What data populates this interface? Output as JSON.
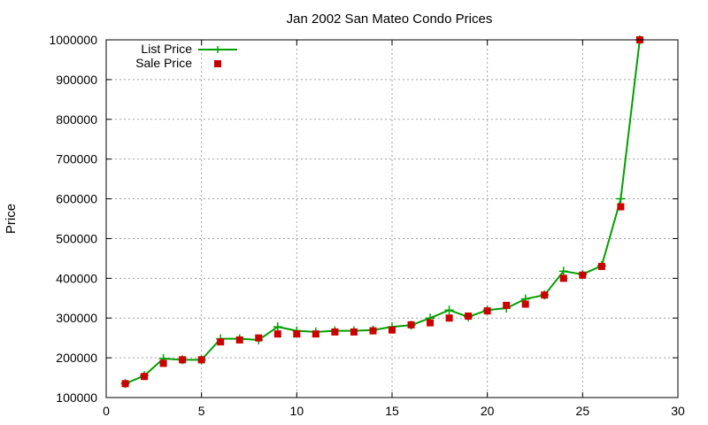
{
  "chart_data": {
    "type": "line",
    "title": "Jan 2002 San Mateo Condo Prices",
    "xlabel": "",
    "ylabel": "Price",
    "xlim": [
      0,
      30
    ],
    "ylim": [
      100000,
      1000000
    ],
    "x_ticks": [
      0,
      5,
      10,
      15,
      20,
      25,
      30
    ],
    "y_ticks": [
      100000,
      200000,
      300000,
      400000,
      500000,
      600000,
      700000,
      800000,
      900000,
      1000000
    ],
    "x_tick_labels": [
      "0",
      "5",
      "10",
      "15",
      "20",
      "25",
      "30"
    ],
    "y_tick_labels": [
      "100000",
      "200000",
      "300000",
      "400000",
      "500000",
      "600000",
      "700000",
      "800000",
      "900000",
      "1000000"
    ],
    "grid": true,
    "legend_position": "top-left",
    "series": [
      {
        "name": "List Price",
        "style": "line-plus",
        "color": "#00a000",
        "points": [
          [
            1,
            135000
          ],
          [
            2,
            155000
          ],
          [
            3,
            198000
          ],
          [
            4,
            195000
          ],
          [
            5,
            195000
          ],
          [
            6,
            248000
          ],
          [
            7,
            248000
          ],
          [
            8,
            245000
          ],
          [
            9,
            278000
          ],
          [
            10,
            268000
          ],
          [
            11,
            265000
          ],
          [
            12,
            268000
          ],
          [
            13,
            268000
          ],
          [
            14,
            270000
          ],
          [
            15,
            278000
          ],
          [
            16,
            282000
          ],
          [
            17,
            300000
          ],
          [
            18,
            320000
          ],
          [
            19,
            303000
          ],
          [
            20,
            320000
          ],
          [
            21,
            325000
          ],
          [
            22,
            348000
          ],
          [
            23,
            358000
          ],
          [
            24,
            418000
          ],
          [
            25,
            410000
          ],
          [
            26,
            432000
          ],
          [
            27,
            600000
          ],
          [
            28,
            1000000
          ]
        ]
      },
      {
        "name": "Sale Price",
        "style": "square-markers",
        "color": "#cc0000",
        "points": [
          [
            1,
            135000
          ],
          [
            2,
            153000
          ],
          [
            3,
            186000
          ],
          [
            4,
            195000
          ],
          [
            5,
            195000
          ],
          [
            6,
            240000
          ],
          [
            7,
            245000
          ],
          [
            8,
            250000
          ],
          [
            9,
            260000
          ],
          [
            10,
            260000
          ],
          [
            11,
            260000
          ],
          [
            12,
            265000
          ],
          [
            13,
            265000
          ],
          [
            14,
            268000
          ],
          [
            15,
            270000
          ],
          [
            16,
            283000
          ],
          [
            17,
            288000
          ],
          [
            18,
            300000
          ],
          [
            19,
            305000
          ],
          [
            20,
            318000
          ],
          [
            21,
            332000
          ],
          [
            22,
            335000
          ],
          [
            23,
            358000
          ],
          [
            24,
            400000
          ],
          [
            25,
            408000
          ],
          [
            26,
            430000
          ],
          [
            27,
            580000
          ],
          [
            28,
            1000000
          ]
        ]
      }
    ]
  }
}
